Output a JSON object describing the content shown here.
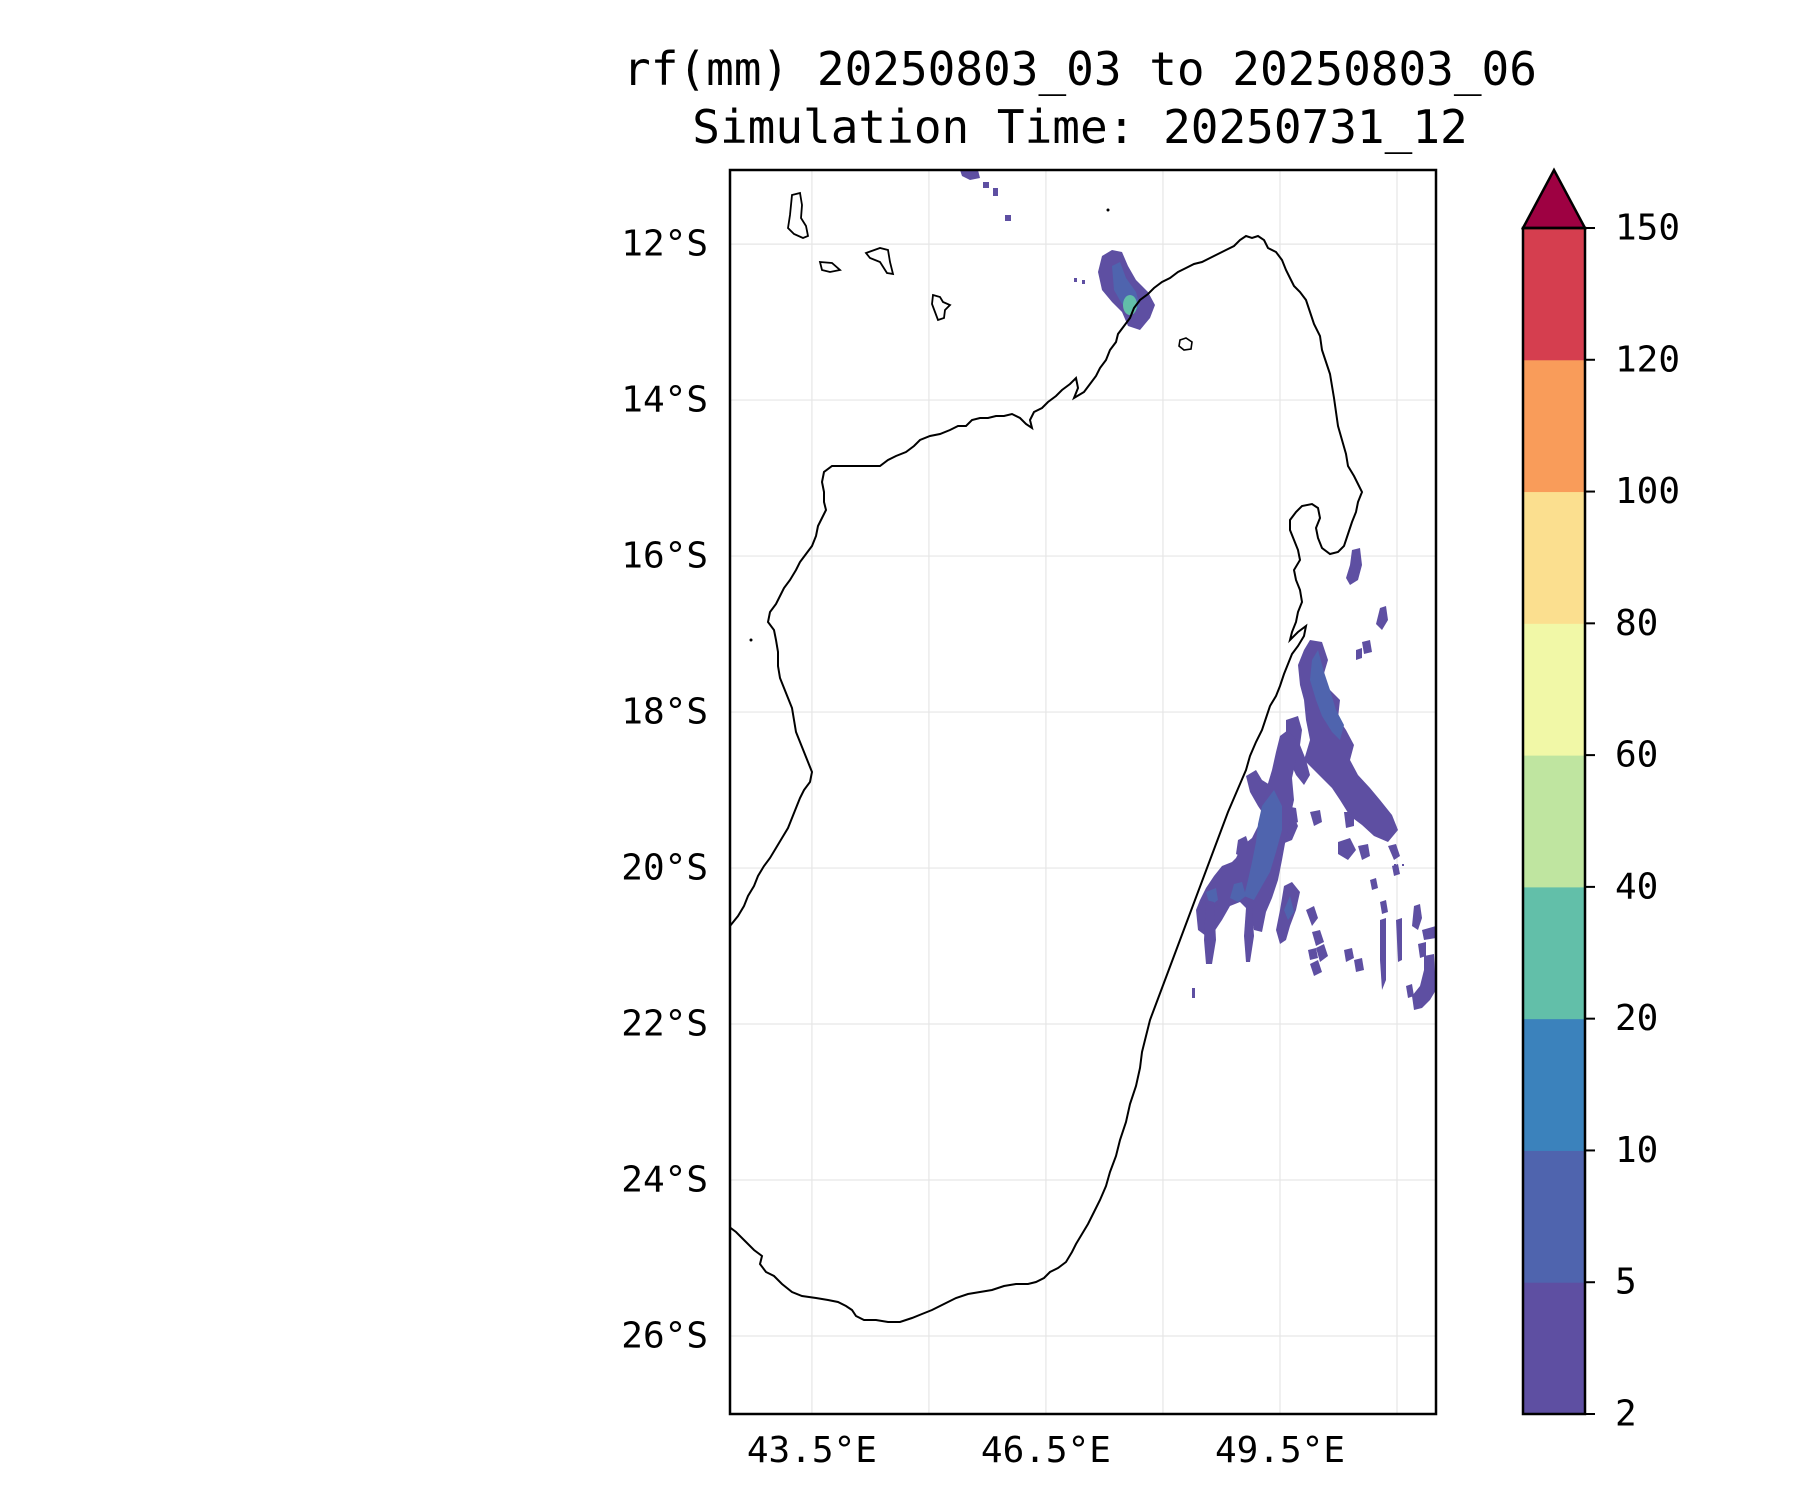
{
  "title_line1": "rf(mm) 20250803_03 to 20250803_06",
  "title_line2": "Simulation Time: 20250731_12",
  "map": {
    "extent": {
      "lon_min": 42.45,
      "lon_max": 51.5,
      "lat_min": -27.0,
      "lat_max": -11.05
    },
    "lat_ticks": [
      {
        "value": -12,
        "label": "12°S"
      },
      {
        "value": -14,
        "label": "14°S"
      },
      {
        "value": -16,
        "label": "16°S"
      },
      {
        "value": -18,
        "label": "18°S"
      },
      {
        "value": -20,
        "label": "20°S"
      },
      {
        "value": -22,
        "label": "22°S"
      },
      {
        "value": -24,
        "label": "24°S"
      },
      {
        "value": -26,
        "label": "26°S"
      }
    ],
    "lon_ticks": [
      {
        "value": 43.5,
        "label": "43.5°E"
      },
      {
        "value": 46.5,
        "label": "46.5°E"
      },
      {
        "value": 49.5,
        "label": "49.5°E"
      }
    ],
    "lon_grid": [
      43.5,
      45.0,
      46.5,
      48.0,
      49.5,
      51.0
    ],
    "grid": true,
    "gridline_color": "#e6e6e6",
    "coastline_color": "#000000",
    "background": "#ffffff"
  },
  "colorbar": {
    "levels": [
      "2",
      "5",
      "10",
      "20",
      "40",
      "60",
      "80",
      "100",
      "120",
      "150"
    ],
    "colors": [
      "#5e4fa2",
      "#4f64ae",
      "#3b82bc",
      "#62bfa9",
      "#bfe5a0",
      "#f1f8a7",
      "#fbdf8f",
      "#f99c5a",
      "#d53e4f"
    ],
    "extend_color": "#9e0142",
    "extend": "max"
  }
}
